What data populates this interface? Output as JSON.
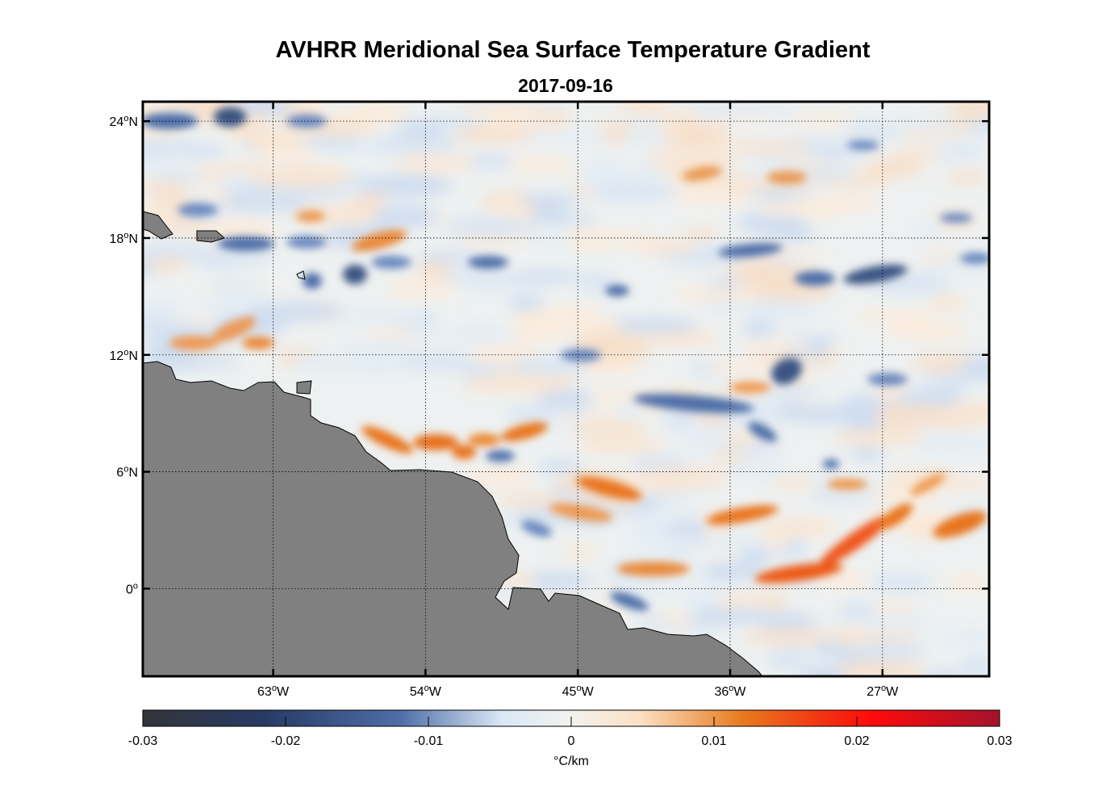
{
  "title": "AVHRR Meridional Sea Surface Temperature Gradient",
  "subtitle": "2017-09-16",
  "map": {
    "lon_range": [
      -70.7,
      -20.7
    ],
    "lat_range": [
      -4.5,
      25
    ],
    "lon_ticks": [
      {
        "value": -63,
        "label": "63",
        "hemi": "W"
      },
      {
        "value": -54,
        "label": "54",
        "hemi": "W"
      },
      {
        "value": -45,
        "label": "45",
        "hemi": "W"
      },
      {
        "value": -36,
        "label": "36",
        "hemi": "W"
      },
      {
        "value": -27,
        "label": "27",
        "hemi": "W"
      }
    ],
    "lat_ticks": [
      {
        "value": 24,
        "label": "24",
        "hemi": "N"
      },
      {
        "value": 18,
        "label": "18",
        "hemi": "N"
      },
      {
        "value": 12,
        "label": "12",
        "hemi": "N"
      },
      {
        "value": 6,
        "label": "6",
        "hemi": "N"
      },
      {
        "value": 0,
        "label": "0",
        "hemi": ""
      }
    ],
    "grid": "dotted",
    "land_color": "#808080"
  },
  "colorbar": {
    "min": -0.03,
    "max": 0.03,
    "ticks": [
      {
        "value": -0.03,
        "label": "-0.03"
      },
      {
        "value": -0.02,
        "label": "-0.02"
      },
      {
        "value": -0.01,
        "label": "-0.01"
      },
      {
        "value": 0,
        "label": "0"
      },
      {
        "value": 0.01,
        "label": "0.01"
      },
      {
        "value": 0.02,
        "label": "0.02"
      },
      {
        "value": 0.03,
        "label": "0.03"
      }
    ],
    "unit_label": "°C/km",
    "colors": [
      "#333438",
      "#263a64",
      "#4e6ea8",
      "#dbe8f5",
      "#f2f2ee",
      "#fbe0c4",
      "#e87a1e",
      "#f42e12",
      "#ff0a0a",
      "#a4132c"
    ]
  }
}
